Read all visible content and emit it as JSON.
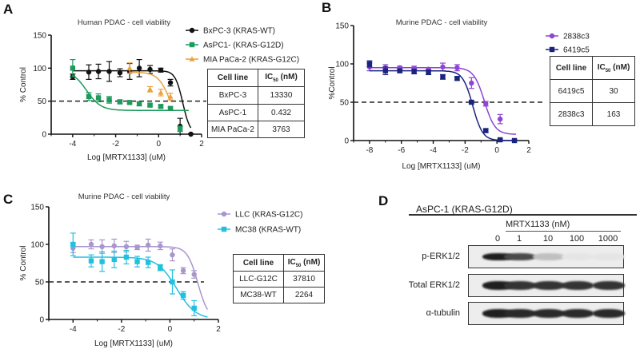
{
  "panels": {
    "A": {
      "letter": "A"
    },
    "B": {
      "letter": "B"
    },
    "C": {
      "letter": "C"
    },
    "D": {
      "letter": "D"
    }
  },
  "chart_data": [
    {
      "id": "A",
      "type": "scatter",
      "title": "Human PDAC - cell viability",
      "xlabel": "Log [MRTX1133] (uM)",
      "ylabel": "% Control",
      "xlim": [
        -5,
        2
      ],
      "ylim": [
        0,
        150
      ],
      "xticks": [
        -4,
        -2,
        0,
        2
      ],
      "yticks": [
        0,
        50,
        100,
        150
      ],
      "reference_line_y": 50,
      "legend_position": "top-right",
      "series": [
        {
          "name": "BxPC-3 (KRAS-WT)",
          "color": "#111111",
          "marker": "circle",
          "x": [
            -4,
            -3.25,
            -2.8,
            -2.3,
            -1.8,
            -1.35,
            -0.9,
            -0.4,
            0.1,
            0.55,
            1.0,
            1.5
          ],
          "y": [
            87,
            94,
            95,
            95,
            93,
            95,
            100,
            98,
            97,
            78,
            12,
            0
          ],
          "err": [
            4,
            11,
            11,
            15,
            6,
            12,
            13,
            6,
            3,
            5,
            12,
            1
          ],
          "fit": {
            "top": 96,
            "bottom": 0,
            "logIC50": 1.12,
            "hill": 2.5
          }
        },
        {
          "name": "AsPC1- (KRAS-G12D)",
          "color": "#1e9a5c",
          "marker": "square",
          "x": [
            -4,
            -3.25,
            -2.8,
            -2.3,
            -1.8,
            -1.35,
            -0.9,
            -0.4,
            0.1,
            0.55,
            1.0
          ],
          "y": [
            100,
            57,
            55,
            52,
            49,
            48,
            46,
            44,
            42,
            39,
            8
          ],
          "err": [
            13,
            6,
            6,
            5,
            3,
            2,
            3,
            2,
            2,
            2,
            4
          ],
          "fit": {
            "top": 97,
            "bottom": 36,
            "logIC50": -3.36,
            "hill": 1.3,
            "xmax": 1.4
          }
        },
        {
          "name": "MIA PaCa-2 (KRAS-G12C)",
          "color": "#e8a33d",
          "marker": "triangle",
          "x": [
            -1.35,
            -0.4,
            0.1,
            0.55
          ],
          "y": [
            100,
            68,
            63,
            57
          ],
          "err": [
            8,
            4,
            5,
            5
          ],
          "fit": {
            "top": 94,
            "bottom": 0,
            "logIC50": 0.58,
            "hill": 1.5
          }
        }
      ],
      "table": {
        "headers": [
          "Cell line",
          "IC",
          "50",
          " (nM)"
        ],
        "rows": [
          [
            "BxPC-3",
            "13330"
          ],
          [
            "AsPC-1",
            "0.432"
          ],
          [
            "MIA PaCa-2",
            "3763"
          ]
        ]
      }
    },
    {
      "id": "B",
      "type": "scatter",
      "title": "Murine PDAC - cell viability",
      "xlabel": "Log [MRTX1133] (uM)",
      "ylabel": "%Control",
      "xlim": [
        -9,
        2
      ],
      "ylim": [
        0,
        150
      ],
      "xticks": [
        -8,
        -6,
        -4,
        -2,
        0,
        2
      ],
      "yticks": [
        0,
        50,
        100,
        150
      ],
      "reference_line_y": 50,
      "legend_position": "top-right",
      "series": [
        {
          "name": "2838c3",
          "color": "#8e44d6",
          "marker": "circle",
          "x": [
            -8,
            -7,
            -6.1,
            -5.2,
            -4.3,
            -3.4,
            -2.5,
            -1.6,
            -0.7,
            0.2
          ],
          "y": [
            96,
            95,
            95,
            94,
            93,
            96,
            95,
            75,
            48,
            28
          ],
          "err": [
            5,
            4,
            2,
            3,
            2,
            5,
            4,
            7,
            3,
            6
          ],
          "fit": {
            "top": 95,
            "bottom": 8,
            "logIC50": -0.79,
            "hill": 1.3,
            "xmax": 1.2
          }
        },
        {
          "name": "6419c5",
          "color": "#1a237e",
          "marker": "square",
          "x": [
            -8,
            -7,
            -6.1,
            -5.2,
            -4.3,
            -3.4,
            -2.5,
            -1.6,
            -0.7,
            0.2,
            1.1
          ],
          "y": [
            100,
            91,
            91,
            90,
            89,
            83,
            81,
            50,
            13,
            1,
            0
          ],
          "err": [
            4,
            5,
            2,
            3,
            3,
            3,
            2,
            2,
            2,
            1,
            1
          ],
          "fit": {
            "top": 91,
            "bottom": 0,
            "logIC50": -1.52,
            "hill": 1.4,
            "xmax": 1.2
          }
        }
      ],
      "table": {
        "headers": [
          "Cell line",
          "IC",
          "50",
          " (nM)"
        ],
        "rows": [
          [
            "6419c5",
            "30"
          ],
          [
            "2838c3",
            "163"
          ]
        ]
      }
    },
    {
      "id": "C",
      "type": "scatter",
      "title": "Murine PDAC - cell viability",
      "xlabel": "Log [MRTX1133] (uM)",
      "ylabel": "% Control",
      "xlim": [
        -5,
        2
      ],
      "ylim": [
        0,
        150
      ],
      "xticks": [
        -4,
        -2,
        0,
        2
      ],
      "yticks": [
        0,
        50,
        100,
        150
      ],
      "reference_line_y": 50,
      "legend_position": "top-right",
      "series": [
        {
          "name": "LLC (KRAS-G12C)",
          "color": "#a896cc",
          "marker": "circle",
          "x": [
            -4,
            -3.25,
            -2.8,
            -2.3,
            -1.8,
            -1.35,
            -0.9,
            -0.4,
            0.1,
            0.55,
            1.0
          ],
          "y": [
            95,
            100,
            97,
            98,
            97,
            96,
            99,
            98,
            86,
            65,
            60
          ],
          "err": [
            6,
            6,
            9,
            9,
            7,
            3,
            8,
            5,
            8,
            4,
            5
          ],
          "fit": {
            "top": 97,
            "bottom": 0,
            "logIC50": 1.15,
            "hill": 2.0,
            "xmax": 1.55
          }
        },
        {
          "name": "MC38 (KRAS-WT)",
          "color": "#22c0e0",
          "marker": "square",
          "x": [
            -4,
            -3.25,
            -2.8,
            -2.3,
            -1.8,
            -1.35,
            -0.9,
            -0.4,
            0.1,
            0.55,
            1.0
          ],
          "y": [
            100,
            78,
            77,
            80,
            83,
            77,
            76,
            69,
            50,
            32,
            15
          ],
          "err": [
            15,
            8,
            13,
            11,
            9,
            7,
            7,
            4,
            16,
            5,
            10
          ],
          "fit": {
            "top": 83,
            "bottom": 0,
            "logIC50": 0.27,
            "hill": 1.1,
            "xmax": 1.55
          }
        }
      ],
      "table": {
        "headers": [
          "Cell line",
          "IC",
          "50",
          " (nM)"
        ],
        "rows": [
          [
            "LLC-G12C",
            "37810"
          ],
          [
            "MC38-WT",
            "2264"
          ]
        ]
      }
    }
  ],
  "western_blot": {
    "title": "AsPC-1 (KRAS-G12D)",
    "treatment_label": "MRTX1133 (nM)",
    "lanes": [
      "0",
      "1",
      "10",
      "100",
      "1000"
    ],
    "rows": [
      {
        "label": "p-ERK1/2",
        "intensities": [
          0.95,
          0.75,
          0.2,
          0.03,
          0.03
        ]
      },
      {
        "label": "Total ERK1/2",
        "intensities": [
          0.95,
          0.85,
          0.85,
          0.85,
          0.85
        ]
      },
      {
        "label": "α-tubulin",
        "intensities": [
          0.95,
          0.9,
          0.9,
          0.9,
          0.9
        ]
      }
    ]
  }
}
